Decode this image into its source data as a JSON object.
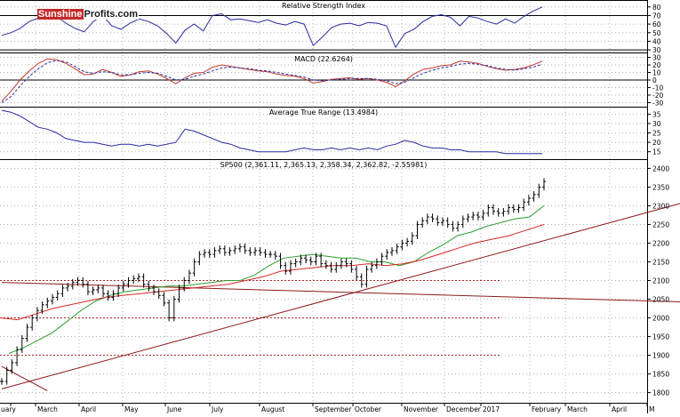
{
  "brand": {
    "part1": "Sunshine",
    "part2": "Profits.com"
  },
  "colors": {
    "price_bars": "#000000",
    "indicator_line": "#2a2aa0",
    "signal_line": "#c0392b",
    "ma_fast": "#2e9e2e",
    "ma_slow": "#d62828",
    "trendline": "#8b1a1a",
    "support": "#b22222",
    "grid": "#b5b5b5"
  },
  "chart_data": [
    {
      "type": "line",
      "title": "Relative Strength Index",
      "y_ticks": [
        30,
        40,
        50,
        60,
        70,
        80
      ],
      "ylim": [
        28,
        86
      ],
      "reference_lines": [
        70,
        30
      ],
      "series": [
        {
          "values": [
            47,
            50,
            55,
            63,
            67,
            66,
            69,
            61,
            55,
            51,
            63,
            70,
            58,
            54,
            61,
            66,
            63,
            58,
            49,
            38,
            53,
            60,
            52,
            70,
            72,
            65,
            66,
            64,
            62,
            65,
            61,
            59,
            63,
            60,
            35,
            45,
            56,
            60,
            61,
            58,
            62,
            61,
            58,
            33,
            49,
            54,
            63,
            69,
            71,
            68,
            58,
            69,
            67,
            63,
            60,
            66,
            61,
            69,
            75,
            80
          ]
        }
      ]
    },
    {
      "type": "line",
      "title": "MACD (22.6264)",
      "y_ticks": [
        -30,
        -20,
        -10,
        0,
        10,
        20,
        30
      ],
      "ylim": [
        -33,
        33
      ],
      "series": [
        {
          "values": [
            -28,
            -15,
            0,
            12,
            22,
            28,
            27,
            22,
            15,
            7,
            8,
            14,
            10,
            5,
            7,
            11,
            12,
            8,
            2,
            -5,
            3,
            9,
            10,
            17,
            20,
            18,
            16,
            14,
            12,
            11,
            8,
            6,
            5,
            2,
            -4,
            -2,
            1,
            2,
            3,
            1,
            2,
            0,
            -3,
            -9,
            -1,
            8,
            14,
            16,
            19,
            20,
            25,
            24,
            22,
            18,
            15,
            13,
            14,
            16,
            20,
            25
          ]
        },
        {
          "values": [
            -30,
            -22,
            -8,
            5,
            15,
            23,
            26,
            24,
            18,
            11,
            9,
            11,
            10,
            7,
            7,
            9,
            10,
            9,
            5,
            0,
            1,
            5,
            8,
            12,
            16,
            17,
            16,
            15,
            13,
            12,
            10,
            8,
            6,
            4,
            0,
            -1,
            0,
            1,
            2,
            2,
            2,
            1,
            -1,
            -5,
            -3,
            3,
            9,
            13,
            16,
            18,
            21,
            22,
            21,
            19,
            16,
            14,
            13,
            15,
            17,
            21
          ]
        }
      ]
    },
    {
      "type": "line",
      "title": "Average True Range (13.4984)",
      "y_ticks": [
        15,
        20,
        25,
        30,
        35
      ],
      "ylim": [
        12,
        38
      ],
      "series": [
        {
          "values": [
            37,
            36,
            34,
            31,
            28,
            27,
            25,
            22,
            21,
            20,
            20,
            19,
            18,
            19,
            19,
            18,
            19,
            18,
            19,
            20,
            27,
            26,
            24,
            22,
            20,
            19,
            17,
            16,
            15,
            15,
            15,
            15,
            16,
            17,
            16,
            16,
            17,
            16,
            17,
            16,
            17,
            16,
            18,
            19,
            21,
            20,
            18,
            17,
            17,
            16,
            16,
            15,
            15,
            15,
            15,
            14,
            14,
            14,
            14,
            14
          ]
        }
      ]
    },
    {
      "type": "bar",
      "title": "SP500 (2,361.11, 2,365.13, 2,358.34, 2,362.82, -2.55981)",
      "y_ticks": [
        1800,
        1850,
        1900,
        1950,
        2000,
        2050,
        2100,
        2150,
        2200,
        2250,
        2300,
        2350,
        2400
      ],
      "ylim": [
        1780,
        2420
      ],
      "x_labels": [
        "uary",
        "March",
        "April",
        "May",
        "June",
        "July",
        "August",
        "September",
        "October",
        "November",
        "December",
        "2017",
        "February",
        "March",
        "April",
        "M"
      ],
      "bars_close": [
        1830,
        1860,
        1880,
        1915,
        1945,
        1975,
        2000,
        2020,
        2035,
        2045,
        2055,
        2065,
        2080,
        2085,
        2095,
        2100,
        2090,
        2070,
        2075,
        2080,
        2065,
        2055,
        2065,
        2080,
        2090,
        2100,
        2105,
        2110,
        2090,
        2080,
        2070,
        2060,
        2040,
        2000,
        2050,
        2080,
        2100,
        2120,
        2150,
        2170,
        2175,
        2170,
        2180,
        2185,
        2175,
        2180,
        2185,
        2190,
        2180,
        2175,
        2180,
        2175,
        2170,
        2170,
        2165,
        2140,
        2125,
        2145,
        2150,
        2160,
        2155,
        2150,
        2165,
        2145,
        2140,
        2130,
        2140,
        2150,
        2145,
        2130,
        2110,
        2090,
        2130,
        2140,
        2150,
        2165,
        2175,
        2180,
        2190,
        2200,
        2205,
        2220,
        2250,
        2260,
        2270,
        2265,
        2255,
        2260,
        2250,
        2240,
        2250,
        2265,
        2270,
        2275,
        2270,
        2280,
        2295,
        2285,
        2280,
        2285,
        2295,
        2290,
        2295,
        2310,
        2320,
        2330,
        2350,
        2365
      ],
      "lines": [
        {
          "name": "SMA fast",
          "values": [
            1905,
            1920,
            1940,
            1960,
            1990,
            2020,
            2045,
            2060,
            2070,
            2075,
            2080,
            2085,
            2085,
            2090,
            2095,
            2100,
            2100,
            2115,
            2140,
            2160,
            2165,
            2170,
            2165,
            2160,
            2160,
            2150,
            2150,
            2140,
            2150,
            2175,
            2195,
            2220,
            2230,
            2245,
            2255,
            2265,
            2270,
            2300
          ]
        },
        {
          "name": "SMA slow",
          "values": [
            2000,
            1995,
            2010,
            2025,
            2035,
            2045,
            2055,
            2060,
            2065,
            2070,
            2075,
            2080,
            2085,
            2090,
            2100,
            2110,
            2125,
            2130,
            2135,
            2140,
            2140,
            2145,
            2140,
            2145,
            2155,
            2170,
            2185,
            2200,
            2210,
            2220,
            2235,
            2250
          ]
        }
      ],
      "trendlines": [
        {
          "from": [
            0,
            1810
          ],
          "to": [
            143,
            2340
          ]
        },
        {
          "from": [
            0,
            2095
          ],
          "to": [
            180,
            2025
          ]
        },
        {
          "from": [
            0,
            1870
          ],
          "to": [
            9,
            1805
          ]
        }
      ],
      "support_levels": [
        2100,
        2000,
        1900
      ]
    }
  ]
}
